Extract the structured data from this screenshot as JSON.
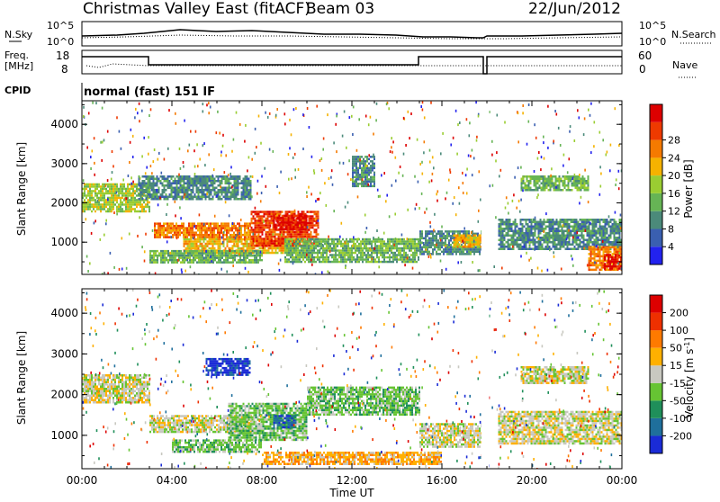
{
  "header": {
    "station": "Christmas Valley East (fitACF)",
    "beam": "Beam 03",
    "date": "22/Jun/2012"
  },
  "strip_labels": {
    "nsky": "N.Sky",
    "nsearch": "N.Search",
    "freq": "Freq.",
    "freq_unit": "[MHz]",
    "nave": "Nave",
    "cpid": "CPID",
    "cpid_value": "normal (fast) 151 IF",
    "noise_left_ticks": [
      "10^5",
      "10^0"
    ],
    "noise_right_ticks": [
      "10^5",
      "10^0"
    ],
    "freq_left_ticks": [
      "18",
      "8"
    ],
    "freq_right_ticks": [
      "60",
      "0"
    ]
  },
  "chart_data": [
    {
      "type": "heatmap",
      "title": "",
      "ylabel": "Slant Range [km]",
      "xlabel": "",
      "yticks": [
        "1000",
        "2000",
        "3000",
        "4000"
      ],
      "ylim": [
        180,
        4600
      ],
      "colorbar": {
        "label": "Power [dB]",
        "ticks": [
          "4",
          "8",
          "12",
          "16",
          "20",
          "24",
          "28"
        ],
        "colors": [
          "#2222ee",
          "#3a5fb0",
          "#4b8a7a",
          "#66b455",
          "#9acd32",
          "#f5b200",
          "#f57a00",
          "#ee3a00",
          "#dd0000"
        ]
      },
      "regions": [
        {
          "t0": 0.0,
          "t1": 3.0,
          "r0": 1800,
          "r1": 2500,
          "level": 4
        },
        {
          "t0": 3.2,
          "t1": 7.5,
          "r0": 1100,
          "r1": 1500,
          "level": 6
        },
        {
          "t0": 4.5,
          "t1": 9.5,
          "r0": 700,
          "r1": 1100,
          "level": 5
        },
        {
          "t0": 7.5,
          "t1": 10.5,
          "r0": 900,
          "r1": 1800,
          "level": 7
        },
        {
          "t0": 8.5,
          "t1": 10.0,
          "r0": 1300,
          "r1": 1700,
          "level": 8
        },
        {
          "t0": 3.0,
          "t1": 8.0,
          "r0": 500,
          "r1": 800,
          "level": 3
        },
        {
          "t0": 2.5,
          "t1": 7.5,
          "r0": 2100,
          "r1": 2700,
          "level": 2
        },
        {
          "t0": 9.0,
          "t1": 15.0,
          "r0": 500,
          "r1": 1100,
          "level": 3
        },
        {
          "t0": 15.0,
          "t1": 18.0,
          "r0": 700,
          "r1": 1300,
          "level": 2
        },
        {
          "t0": 16.5,
          "t1": 17.8,
          "r0": 900,
          "r1": 1200,
          "level": 5
        },
        {
          "t0": 18.5,
          "t1": 24.0,
          "r0": 800,
          "r1": 1600,
          "level": 2
        },
        {
          "t0": 22.5,
          "t1": 24.0,
          "r0": 300,
          "r1": 900,
          "level": 6
        },
        {
          "t0": 23.2,
          "t1": 24.0,
          "r0": 300,
          "r1": 700,
          "level": 8
        },
        {
          "t0": 19.5,
          "t1": 22.5,
          "r0": 2300,
          "r1": 2700,
          "level": 3
        },
        {
          "t0": 12.0,
          "t1": 13.0,
          "r0": 2400,
          "r1": 3200,
          "level": 2
        }
      ]
    },
    {
      "type": "heatmap",
      "title": "",
      "ylabel": "Slant Range [km]",
      "xlabel": "Time UT",
      "xticks": [
        "00:00",
        "04:00",
        "08:00",
        "12:00",
        "16:00",
        "20:00",
        "00:00"
      ],
      "yticks": [
        "1000",
        "2000",
        "3000",
        "4000"
      ],
      "ylim": [
        180,
        4600
      ],
      "colorbar": {
        "label": "Velocity [m s^-1]",
        "ticks": [
          "200",
          "100",
          "50",
          "15",
          "-15",
          "-50",
          "-100",
          "-200"
        ],
        "colors": [
          "#1a2bd6",
          "#1f6f9c",
          "#1f8f5a",
          "#66c433",
          "#c8c8c0",
          "#ffb000",
          "#ff7a00",
          "#ee3000",
          "#dd0000"
        ]
      },
      "regions": [
        {
          "t0": 0.0,
          "t1": 3.0,
          "r0": 1800,
          "r1": 2500,
          "level": 4
        },
        {
          "t0": 3.0,
          "t1": 7.5,
          "r0": 1100,
          "r1": 1500,
          "level": 4
        },
        {
          "t0": 6.5,
          "t1": 10.0,
          "r0": 900,
          "r1": 1800,
          "level": 3
        },
        {
          "t0": 8.5,
          "t1": 9.5,
          "r0": 1200,
          "r1": 1500,
          "level": 1
        },
        {
          "t0": 5.5,
          "t1": 7.5,
          "r0": 2500,
          "r1": 2900,
          "level": 0
        },
        {
          "t0": 4.0,
          "t1": 8.0,
          "r0": 600,
          "r1": 900,
          "level": 3
        },
        {
          "t0": 8.0,
          "t1": 16.0,
          "r0": 300,
          "r1": 600,
          "level": 5
        },
        {
          "t0": 15.0,
          "t1": 18.0,
          "r0": 700,
          "r1": 1300,
          "level": 4
        },
        {
          "t0": 18.5,
          "t1": 24.0,
          "r0": 800,
          "r1": 1600,
          "level": 4
        },
        {
          "t0": 19.5,
          "t1": 22.5,
          "r0": 2300,
          "r1": 2700,
          "level": 4
        },
        {
          "t0": 10.0,
          "t1": 15.0,
          "r0": 1500,
          "r1": 2200,
          "level": 3
        }
      ]
    }
  ]
}
